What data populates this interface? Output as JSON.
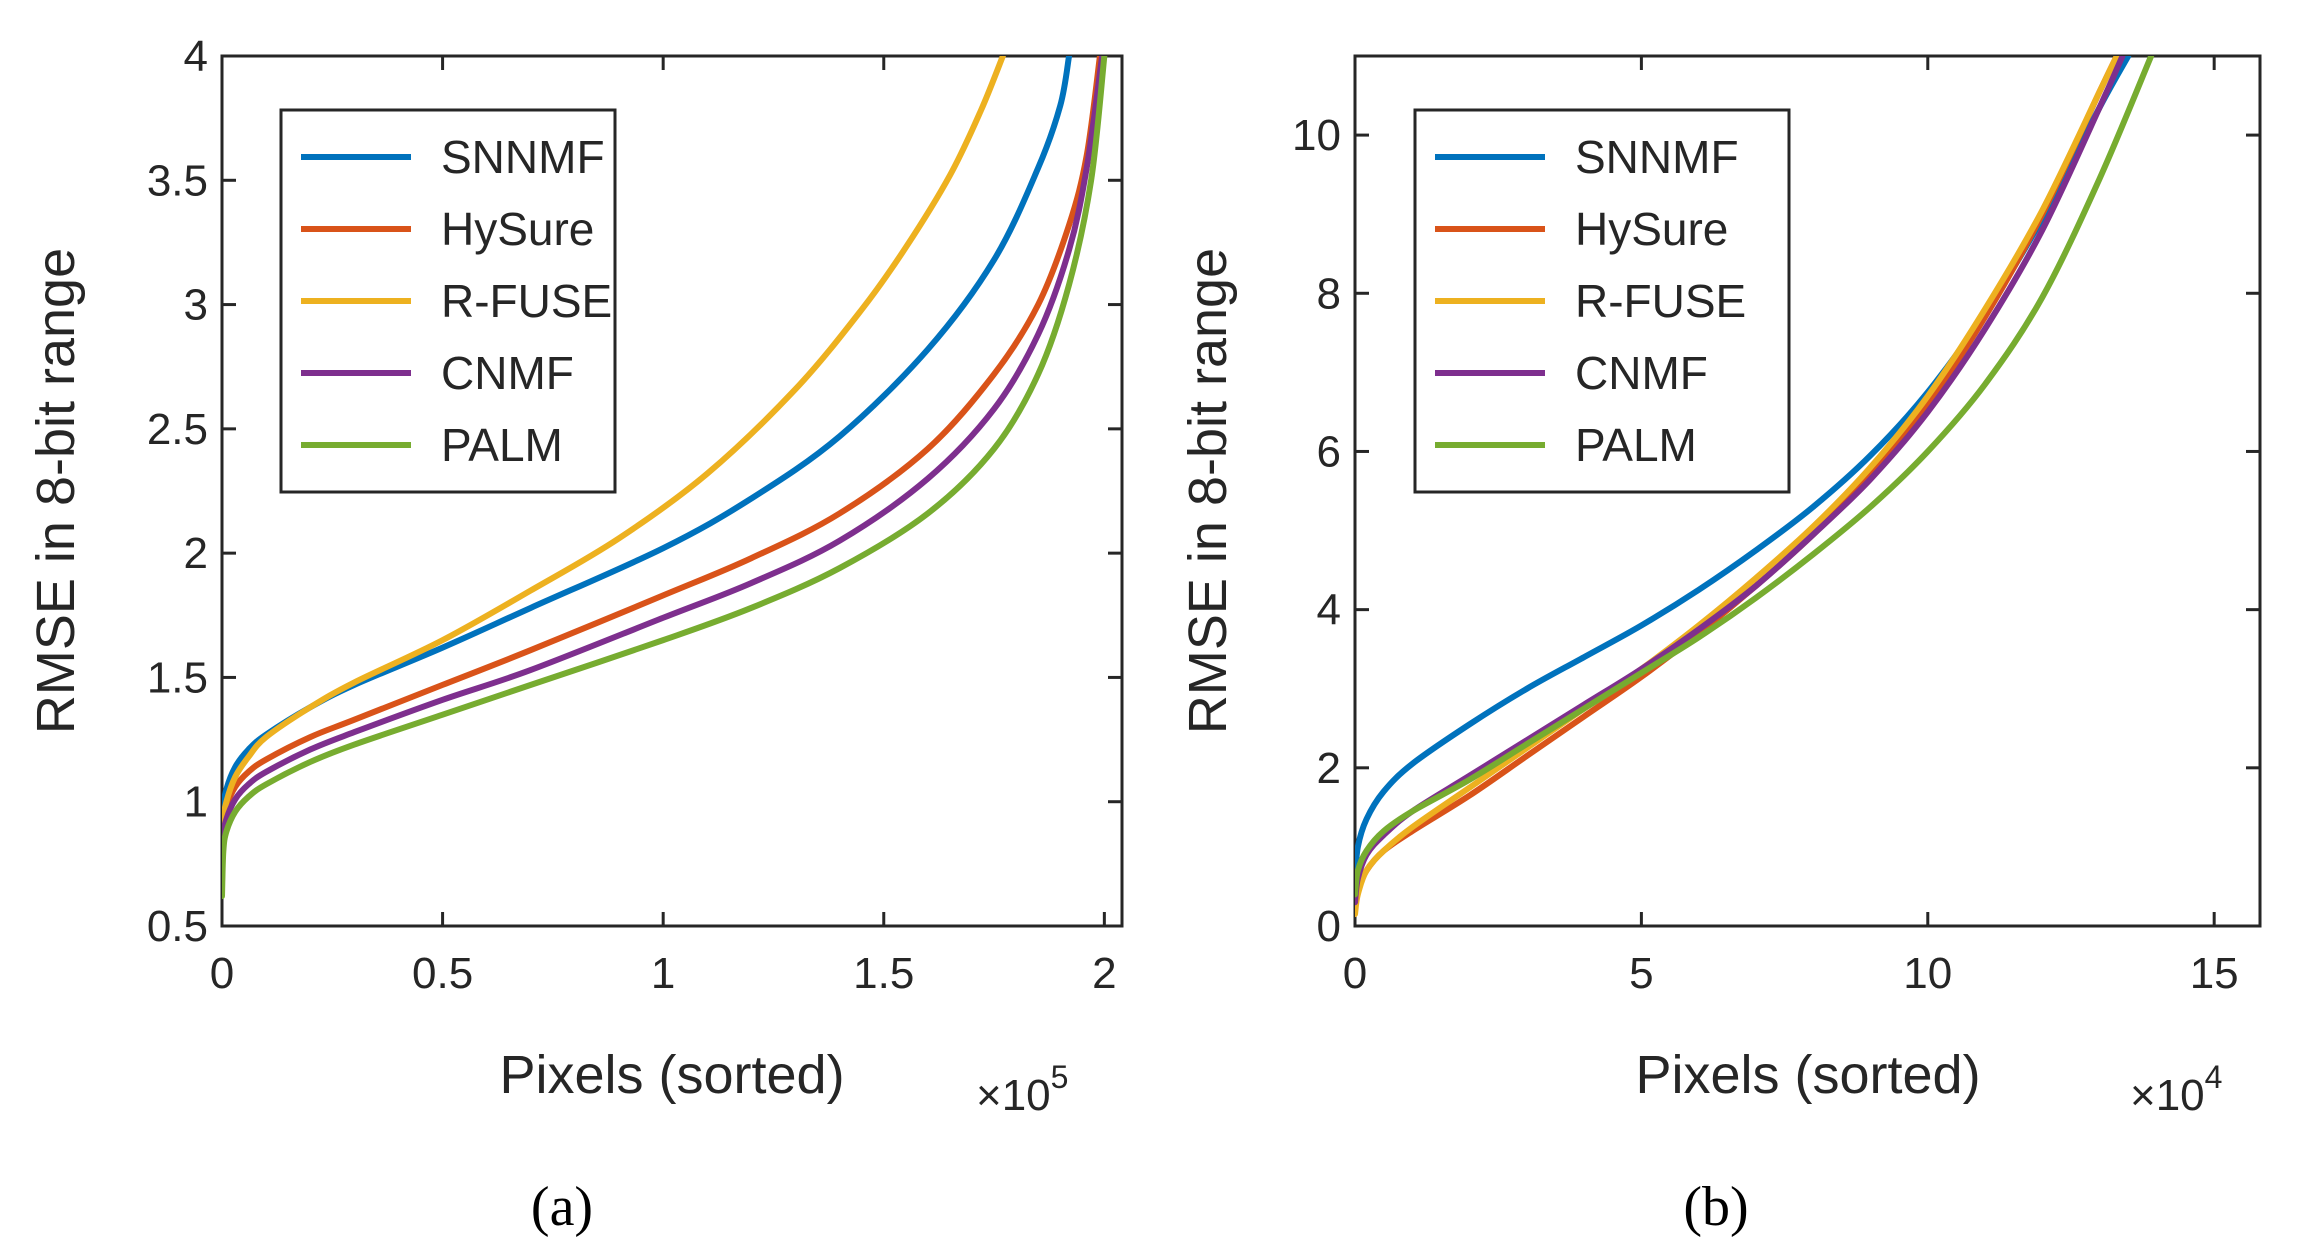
{
  "figure": {
    "colors": {
      "SNNMF": "#0072BD",
      "HySure": "#D95319",
      "R-FUSE": "#EDB120",
      "CNMF": "#7E2F8E",
      "PALM": "#77AC30",
      "axis": "#262626"
    }
  },
  "chart_data": [
    {
      "id": "a",
      "type": "line",
      "caption": "(a)",
      "xlabel": "Pixels (sorted)",
      "ylabel": "RMSE in 8-bit range",
      "x_scale_prefix": "×10",
      "x_scale_exponent": "5",
      "xlim": [
        0,
        2.04
      ],
      "ylim": [
        0.5,
        4
      ],
      "xticks": [
        0,
        0.5,
        1,
        1.5,
        2
      ],
      "xtick_labels": [
        "0",
        "0.5",
        "1",
        "1.5",
        "2"
      ],
      "yticks": [
        0.5,
        1,
        1.5,
        2,
        2.5,
        3,
        3.5,
        4
      ],
      "ytick_labels": [
        "0.5",
        "1",
        "1.5",
        "2",
        "2.5",
        "3",
        "3.5",
        "4"
      ],
      "legend": [
        "SNNMF",
        "HySure",
        "R-FUSE",
        "CNMF",
        "PALM"
      ],
      "legend_location": "top-left",
      "series": [
        {
          "name": "SNNMF",
          "x": [
            0,
            0.003,
            0.01,
            0.03,
            0.06,
            0.1,
            0.2,
            0.3,
            0.5,
            0.7,
            1.0,
            1.2,
            1.4,
            1.6,
            1.75,
            1.85,
            1.9,
            1.92
          ],
          "y": [
            0.8,
            0.97,
            1.05,
            1.14,
            1.21,
            1.27,
            1.38,
            1.47,
            1.62,
            1.78,
            2.02,
            2.22,
            2.47,
            2.82,
            3.18,
            3.55,
            3.8,
            4.0
          ]
        },
        {
          "name": "HySure",
          "x": [
            0,
            0.003,
            0.01,
            0.03,
            0.06,
            0.1,
            0.2,
            0.3,
            0.5,
            0.7,
            1.0,
            1.2,
            1.4,
            1.6,
            1.75,
            1.85,
            1.92,
            1.96,
            1.99
          ],
          "y": [
            0.75,
            0.9,
            0.98,
            1.06,
            1.12,
            1.17,
            1.26,
            1.33,
            1.47,
            1.61,
            1.83,
            1.98,
            2.16,
            2.42,
            2.72,
            3.0,
            3.32,
            3.6,
            4.0
          ]
        },
        {
          "name": "R-FUSE",
          "x": [
            0,
            0.003,
            0.01,
            0.03,
            0.06,
            0.1,
            0.2,
            0.3,
            0.5,
            0.7,
            0.9,
            1.1,
            1.3,
            1.45,
            1.55,
            1.65,
            1.72,
            1.77
          ],
          "y": [
            0.75,
            0.92,
            1.0,
            1.1,
            1.18,
            1.26,
            1.38,
            1.48,
            1.65,
            1.85,
            2.06,
            2.32,
            2.66,
            2.98,
            3.23,
            3.52,
            3.78,
            4.0
          ]
        },
        {
          "name": "CNMF",
          "x": [
            0,
            0.003,
            0.01,
            0.03,
            0.06,
            0.1,
            0.2,
            0.3,
            0.5,
            0.7,
            1.0,
            1.2,
            1.4,
            1.6,
            1.75,
            1.85,
            1.92,
            1.96,
            1.995
          ],
          "y": [
            0.68,
            0.86,
            0.93,
            1.01,
            1.07,
            1.12,
            1.21,
            1.28,
            1.41,
            1.53,
            1.74,
            1.88,
            2.05,
            2.3,
            2.58,
            2.88,
            3.22,
            3.55,
            4.0
          ]
        },
        {
          "name": "PALM",
          "x": [
            0,
            0.003,
            0.01,
            0.03,
            0.06,
            0.1,
            0.2,
            0.3,
            0.5,
            0.7,
            1.0,
            1.2,
            1.4,
            1.6,
            1.75,
            1.85,
            1.92,
            1.97,
            2.0
          ],
          "y": [
            0.62,
            0.8,
            0.88,
            0.96,
            1.02,
            1.07,
            1.16,
            1.23,
            1.35,
            1.47,
            1.65,
            1.78,
            1.94,
            2.16,
            2.42,
            2.72,
            3.08,
            3.5,
            4.0
          ]
        }
      ]
    },
    {
      "id": "b",
      "type": "line",
      "caption": "(b)",
      "xlabel": "Pixels (sorted)",
      "ylabel": "RMSE in 8-bit range",
      "x_scale_prefix": "×10",
      "x_scale_exponent": "4",
      "xlim": [
        0,
        15.8
      ],
      "ylim": [
        0,
        11
      ],
      "xticks": [
        0,
        5,
        10,
        15
      ],
      "xtick_labels": [
        "0",
        "5",
        "10",
        "15"
      ],
      "yticks": [
        0,
        2,
        4,
        6,
        8,
        10
      ],
      "ytick_labels": [
        "0",
        "2",
        "4",
        "6",
        "8",
        "10"
      ],
      "legend": [
        "SNNMF",
        "HySure",
        "R-FUSE",
        "CNMF",
        "PALM"
      ],
      "legend_location": "top-left",
      "series": [
        {
          "name": "SNNMF",
          "x": [
            0,
            0.05,
            0.2,
            0.5,
            1,
            2,
            3,
            4,
            5,
            6,
            7,
            8,
            9,
            10,
            11,
            12,
            13,
            13.5
          ],
          "y": [
            0.6,
            1.0,
            1.35,
            1.7,
            2.05,
            2.55,
            3.0,
            3.4,
            3.8,
            4.25,
            4.75,
            5.3,
            5.95,
            6.75,
            7.75,
            8.95,
            10.35,
            11.0
          ]
        },
        {
          "name": "HySure",
          "x": [
            0,
            0.05,
            0.2,
            0.5,
            1,
            2,
            3,
            4,
            5,
            6,
            7,
            8,
            9,
            10,
            11,
            12,
            13,
            13.3
          ],
          "y": [
            0.2,
            0.45,
            0.7,
            0.95,
            1.2,
            1.65,
            2.15,
            2.65,
            3.15,
            3.7,
            4.3,
            4.95,
            5.7,
            6.6,
            7.7,
            9.0,
            10.55,
            11.0
          ]
        },
        {
          "name": "R-FUSE",
          "x": [
            0,
            0.05,
            0.2,
            0.5,
            1,
            2,
            3,
            4,
            5,
            6,
            7,
            8,
            9,
            10,
            11,
            12,
            13,
            13.3
          ],
          "y": [
            0.15,
            0.4,
            0.7,
            0.95,
            1.25,
            1.75,
            2.25,
            2.75,
            3.25,
            3.8,
            4.4,
            5.05,
            5.8,
            6.7,
            7.8,
            9.05,
            10.55,
            11.0
          ]
        },
        {
          "name": "CNMF",
          "x": [
            0,
            0.05,
            0.2,
            0.5,
            1,
            2,
            3,
            4,
            5,
            6,
            7,
            8,
            9,
            10,
            11,
            12,
            13,
            13.4
          ],
          "y": [
            0.3,
            0.6,
            0.9,
            1.15,
            1.45,
            1.9,
            2.35,
            2.8,
            3.25,
            3.75,
            4.3,
            4.95,
            5.65,
            6.5,
            7.55,
            8.8,
            10.35,
            11.0
          ]
        },
        {
          "name": "PALM",
          "x": [
            0,
            0.05,
            0.2,
            0.5,
            1,
            2,
            3,
            4,
            5,
            6,
            7,
            8,
            9,
            10,
            11,
            12,
            13,
            13.9
          ],
          "y": [
            0.4,
            0.7,
            0.95,
            1.2,
            1.45,
            1.85,
            2.3,
            2.75,
            3.2,
            3.65,
            4.15,
            4.7,
            5.3,
            6.0,
            6.85,
            7.95,
            9.45,
            11.0
          ]
        }
      ]
    }
  ]
}
